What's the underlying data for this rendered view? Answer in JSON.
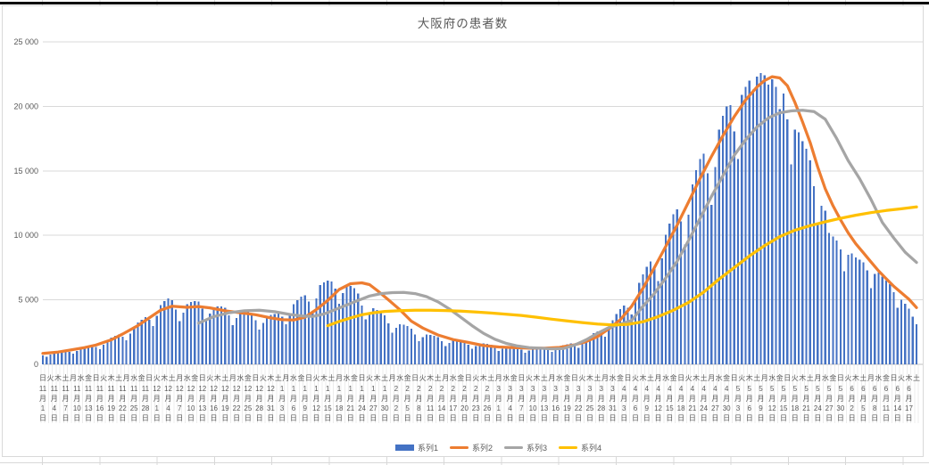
{
  "chart_data": {
    "type": "combo-bar-line",
    "title": "大阪府の患者数",
    "y_axis": {
      "min": 0,
      "max": 25000,
      "step": 5000,
      "tick_labels": [
        "0",
        "5 000",
        "10 000",
        "15 000",
        "20 000",
        "25 000"
      ],
      "grid": true
    },
    "x_axis": {
      "description": "daily categories from 11月1日 to 6月19日; stacked date labels every 3 days (last shown 6月17日), weekday characters every 2 days",
      "months": [
        {
          "month": "11",
          "days": 30
        },
        {
          "month": "12",
          "days": 31
        },
        {
          "month": "1",
          "days": 31
        },
        {
          "month": "2",
          "days": 28
        },
        {
          "month": "3",
          "days": 31
        },
        {
          "month": "4",
          "days": 30
        },
        {
          "month": "5",
          "days": 31
        },
        {
          "month": "6",
          "days": 19
        }
      ],
      "weekday_chars": [
        "日",
        "月",
        "火",
        "水",
        "木",
        "金",
        "土"
      ],
      "first_weekday_index": 0,
      "weekday_label_interval": 2,
      "date_label_interval": 3,
      "month_suffix": "月",
      "day_suffix": "日"
    },
    "legend": {
      "position": "bottom",
      "items": [
        "系列1",
        "系列2",
        "系列3",
        "系列4"
      ]
    },
    "series": [
      {
        "name": "系列1",
        "type": "bar",
        "color": "#4472C4",
        "values": [
          700,
          590,
          750,
          910,
          990,
          1040,
          1070,
          980,
          830,
          1050,
          1270,
          1370,
          1440,
          1480,
          1350,
          1180,
          1520,
          1890,
          2070,
          2220,
          2310,
          2140,
          1860,
          2390,
          2950,
          3230,
          3460,
          3660,
          3440,
          2960,
          3780,
          4580,
          4920,
          5100,
          4960,
          4250,
          3340,
          4020,
          4660,
          4820,
          4910,
          4880,
          4320,
          3390,
          3950,
          4420,
          4500,
          4500,
          4380,
          3800,
          3040,
          3590,
          4090,
          4140,
          4110,
          3980,
          3430,
          2710,
          3200,
          3710,
          3830,
          3890,
          4010,
          3690,
          3110,
          3890,
          4660,
          4980,
          5240,
          5350,
          4880,
          4100,
          5120,
          6140,
          6350,
          6480,
          6420,
          5870,
          4680,
          5540,
          6150,
          6080,
          5890,
          5490,
          4570,
          3490,
          3980,
          4350,
          4230,
          4070,
          3800,
          3160,
          2450,
          2820,
          3120,
          3080,
          2970,
          2780,
          2330,
          1810,
          2090,
          2320,
          2290,
          2210,
          2120,
          1810,
          1430,
          1670,
          1870,
          1870,
          1840,
          1770,
          1520,
          1200,
          1410,
          1590,
          1610,
          1590,
          1530,
          1310,
          1040,
          1220,
          1370,
          1390,
          1370,
          1330,
          1140,
          900,
          1060,
          1240,
          1280,
          1310,
          1290,
          1140,
          960,
          1190,
          1420,
          1500,
          1570,
          1630,
          1500,
          1280,
          1640,
          2010,
          2190,
          2410,
          2560,
          2420,
          2130,
          2760,
          3430,
          3890,
          4280,
          4560,
          4400,
          3880,
          5040,
          6310,
          6990,
          7560,
          7990,
          7500,
          6450,
          8220,
          10050,
          10910,
          11630,
          12010,
          11070,
          9300,
          11610,
          13940,
          15050,
          15910,
          16320,
          14820,
          12350,
          15300,
          18200,
          19260,
          19980,
          20100,
          18070,
          15920,
          20900,
          21500,
          22000,
          21300,
          22300,
          22600,
          22400,
          21700,
          22100,
          21500,
          19800,
          21000,
          19000,
          15500,
          18200,
          18000,
          17300,
          16700,
          15800,
          13800,
          10800,
          12300,
          11900,
          10200,
          9900,
          9600,
          8900,
          7200,
          8500,
          8600,
          8300,
          8100,
          7900,
          7300,
          5900,
          7000,
          7100,
          6800,
          6500,
          6200,
          5600,
          4400,
          5000,
          4700,
          4300,
          3700,
          3100
        ]
      },
      {
        "name": "系列2",
        "type": "line",
        "color": "#ED7D31",
        "anchors": [
          [
            0,
            850
          ],
          [
            4,
            950
          ],
          [
            7,
            1100
          ],
          [
            11,
            1300
          ],
          [
            14,
            1500
          ],
          [
            18,
            1900
          ],
          [
            21,
            2350
          ],
          [
            25,
            3000
          ],
          [
            28,
            3600
          ],
          [
            31,
            4200
          ],
          [
            34,
            4500
          ],
          [
            38,
            4420
          ],
          [
            41,
            4480
          ],
          [
            44,
            4380
          ],
          [
            48,
            4150
          ],
          [
            52,
            4000
          ],
          [
            56,
            3850
          ],
          [
            60,
            3600
          ],
          [
            63,
            3460
          ],
          [
            66,
            3430
          ],
          [
            69,
            3650
          ],
          [
            72,
            4250
          ],
          [
            75,
            4950
          ],
          [
            78,
            5800
          ],
          [
            81,
            6250
          ],
          [
            84,
            6320
          ],
          [
            86,
            6180
          ],
          [
            88,
            5730
          ],
          [
            91,
            5000
          ],
          [
            94,
            4230
          ],
          [
            97,
            3350
          ],
          [
            100,
            2820
          ],
          [
            104,
            2280
          ],
          [
            108,
            1920
          ],
          [
            112,
            1700
          ],
          [
            116,
            1460
          ],
          [
            120,
            1350
          ],
          [
            124,
            1290
          ],
          [
            128,
            1250
          ],
          [
            132,
            1250
          ],
          [
            136,
            1310
          ],
          [
            140,
            1510
          ],
          [
            143,
            1760
          ],
          [
            146,
            2150
          ],
          [
            149,
            2750
          ],
          [
            152,
            3450
          ],
          [
            155,
            4500
          ],
          [
            158,
            5900
          ],
          [
            161,
            7500
          ],
          [
            164,
            9150
          ],
          [
            167,
            10800
          ],
          [
            170,
            12600
          ],
          [
            173,
            14400
          ],
          [
            176,
            16100
          ],
          [
            179,
            17700
          ],
          [
            182,
            19200
          ],
          [
            185,
            20500
          ],
          [
            188,
            21500
          ],
          [
            190,
            22000
          ],
          [
            192,
            22300
          ],
          [
            194,
            22200
          ],
          [
            196,
            21600
          ],
          [
            198,
            20300
          ],
          [
            200,
            18800
          ],
          [
            202,
            17200
          ],
          [
            204,
            15300
          ],
          [
            206,
            13600
          ],
          [
            208,
            12300
          ],
          [
            210,
            11200
          ],
          [
            212,
            10200
          ],
          [
            214,
            9350
          ],
          [
            216,
            8650
          ],
          [
            218,
            7950
          ],
          [
            220,
            7250
          ],
          [
            222,
            6650
          ],
          [
            224,
            6050
          ],
          [
            226,
            5550
          ],
          [
            228,
            5050
          ],
          [
            230,
            4400
          ]
        ]
      },
      {
        "name": "系列3",
        "type": "line",
        "color": "#A5A5A5",
        "anchors": [
          [
            41,
            3200
          ],
          [
            45,
            3700
          ],
          [
            49,
            4000
          ],
          [
            53,
            4150
          ],
          [
            57,
            4190
          ],
          [
            61,
            4080
          ],
          [
            65,
            3870
          ],
          [
            68,
            3760
          ],
          [
            71,
            3710
          ],
          [
            74,
            3900
          ],
          [
            77,
            4250
          ],
          [
            80,
            4600
          ],
          [
            83,
            4950
          ],
          [
            86,
            5300
          ],
          [
            89,
            5480
          ],
          [
            92,
            5560
          ],
          [
            95,
            5570
          ],
          [
            98,
            5480
          ],
          [
            101,
            5250
          ],
          [
            104,
            4850
          ],
          [
            107,
            4300
          ],
          [
            110,
            3650
          ],
          [
            113,
            3000
          ],
          [
            116,
            2400
          ],
          [
            119,
            1950
          ],
          [
            122,
            1620
          ],
          [
            125,
            1420
          ],
          [
            128,
            1300
          ],
          [
            131,
            1250
          ],
          [
            134,
            1200
          ],
          [
            137,
            1220
          ],
          [
            140,
            1500
          ],
          [
            143,
            1900
          ],
          [
            146,
            2400
          ],
          [
            149,
            2850
          ],
          [
            152,
            3100
          ],
          [
            155,
            3400
          ],
          [
            158,
            4500
          ],
          [
            161,
            5500
          ],
          [
            164,
            6700
          ],
          [
            167,
            8000
          ],
          [
            170,
            9600
          ],
          [
            173,
            11300
          ],
          [
            176,
            13000
          ],
          [
            179,
            14600
          ],
          [
            182,
            16200
          ],
          [
            185,
            17400
          ],
          [
            188,
            18400
          ],
          [
            191,
            19100
          ],
          [
            194,
            19500
          ],
          [
            197,
            19650
          ],
          [
            200,
            19700
          ],
          [
            203,
            19600
          ],
          [
            206,
            19000
          ],
          [
            209,
            17500
          ],
          [
            212,
            15800
          ],
          [
            215,
            14400
          ],
          [
            218,
            12800
          ],
          [
            221,
            11000
          ],
          [
            224,
            9800
          ],
          [
            227,
            8700
          ],
          [
            230,
            7900
          ]
        ]
      },
      {
        "name": "系列4",
        "type": "line",
        "color": "#FFC000",
        "anchors": [
          [
            75,
            3000
          ],
          [
            78,
            3320
          ],
          [
            81,
            3600
          ],
          [
            84,
            3850
          ],
          [
            87,
            4000
          ],
          [
            90,
            4100
          ],
          [
            94,
            4160
          ],
          [
            98,
            4200
          ],
          [
            102,
            4200
          ],
          [
            106,
            4170
          ],
          [
            110,
            4120
          ],
          [
            114,
            4060
          ],
          [
            118,
            3980
          ],
          [
            122,
            3890
          ],
          [
            126,
            3790
          ],
          [
            130,
            3650
          ],
          [
            134,
            3500
          ],
          [
            138,
            3370
          ],
          [
            142,
            3240
          ],
          [
            146,
            3120
          ],
          [
            150,
            3060
          ],
          [
            154,
            3100
          ],
          [
            158,
            3300
          ],
          [
            162,
            3700
          ],
          [
            166,
            4200
          ],
          [
            170,
            4800
          ],
          [
            174,
            5600
          ],
          [
            178,
            6600
          ],
          [
            182,
            7500
          ],
          [
            186,
            8400
          ],
          [
            190,
            9200
          ],
          [
            194,
            9900
          ],
          [
            198,
            10400
          ],
          [
            202,
            10750
          ],
          [
            206,
            11050
          ],
          [
            210,
            11320
          ],
          [
            214,
            11560
          ],
          [
            218,
            11760
          ],
          [
            222,
            11930
          ],
          [
            226,
            12060
          ],
          [
            230,
            12200
          ]
        ]
      }
    ]
  }
}
